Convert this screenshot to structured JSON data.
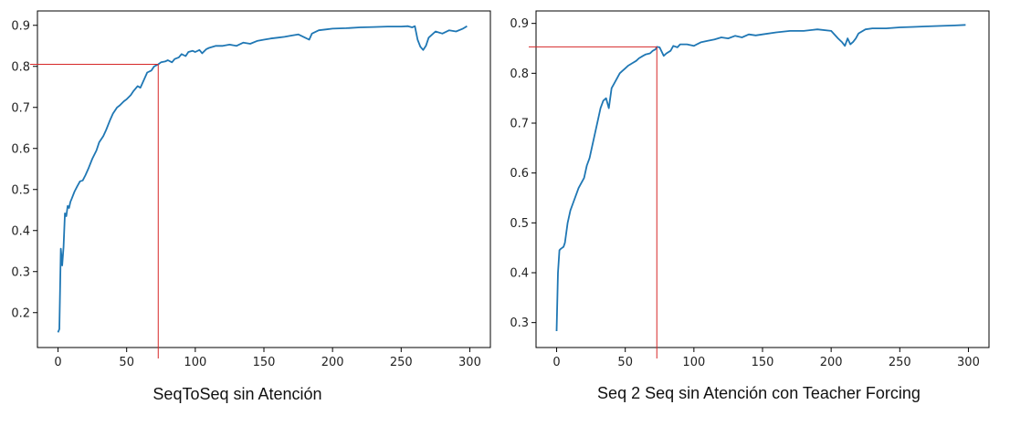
{
  "chart_data": [
    {
      "type": "line",
      "caption": "SeqToSeq sin Atención",
      "xlim": [
        -15,
        315
      ],
      "ylim": [
        0.115,
        0.935
      ],
      "xticks": [
        0,
        50,
        100,
        150,
        200,
        250,
        300
      ],
      "yticks": [
        0.2,
        0.3,
        0.4,
        0.5,
        0.6,
        0.7,
        0.8,
        0.9
      ],
      "grid": false,
      "line_color": "#1f77b4",
      "marker_color": "#d62728",
      "marker": {
        "x": 73,
        "y": 0.805
      },
      "series": [
        {
          "x": [
            0,
            1,
            2,
            3,
            4,
            5,
            6,
            7,
            8,
            9,
            10,
            12,
            14,
            16,
            18,
            20,
            22,
            25,
            28,
            30,
            33,
            35,
            38,
            40,
            43,
            45,
            48,
            50,
            53,
            55,
            58,
            60,
            63,
            65,
            68,
            70,
            73,
            75,
            78,
            80,
            83,
            85,
            88,
            90,
            93,
            95,
            98,
            100,
            103,
            105,
            108,
            110,
            115,
            120,
            125,
            130,
            135,
            140,
            145,
            150,
            155,
            160,
            165,
            170,
            175,
            180,
            183,
            185,
            190,
            195,
            200,
            210,
            220,
            230,
            240,
            250,
            255,
            258,
            260,
            262,
            264,
            266,
            268,
            270,
            275,
            280,
            285,
            290,
            295,
            298
          ],
          "y": [
            0.152,
            0.16,
            0.356,
            0.315,
            0.36,
            0.442,
            0.435,
            0.46,
            0.455,
            0.47,
            0.478,
            0.495,
            0.508,
            0.52,
            0.522,
            0.535,
            0.55,
            0.575,
            0.595,
            0.615,
            0.63,
            0.645,
            0.67,
            0.685,
            0.7,
            0.705,
            0.715,
            0.72,
            0.73,
            0.74,
            0.752,
            0.748,
            0.77,
            0.785,
            0.79,
            0.8,
            0.805,
            0.81,
            0.812,
            0.815,
            0.81,
            0.818,
            0.822,
            0.83,
            0.825,
            0.835,
            0.838,
            0.835,
            0.84,
            0.832,
            0.842,
            0.845,
            0.85,
            0.85,
            0.853,
            0.85,
            0.858,
            0.855,
            0.862,
            0.865,
            0.868,
            0.87,
            0.872,
            0.875,
            0.878,
            0.87,
            0.865,
            0.88,
            0.888,
            0.89,
            0.892,
            0.893,
            0.895,
            0.896,
            0.897,
            0.897,
            0.898,
            0.895,
            0.898,
            0.865,
            0.848,
            0.84,
            0.85,
            0.87,
            0.885,
            0.88,
            0.888,
            0.885,
            0.892,
            0.898
          ]
        }
      ]
    },
    {
      "type": "line",
      "caption": "Seq 2 Seq sin Atención con Teacher Forcing",
      "xlim": [
        -15,
        315
      ],
      "ylim": [
        0.25,
        0.925
      ],
      "xticks": [
        0,
        50,
        100,
        150,
        200,
        250,
        300
      ],
      "yticks": [
        0.3,
        0.4,
        0.5,
        0.6,
        0.7,
        0.8,
        0.9
      ],
      "grid": false,
      "line_color": "#1f77b4",
      "marker_color": "#d62728",
      "marker": {
        "x": 73,
        "y": 0.853
      },
      "series": [
        {
          "x": [
            0,
            1,
            2,
            3,
            4,
            5,
            6,
            7,
            8,
            10,
            12,
            14,
            16,
            18,
            20,
            22,
            24,
            26,
            28,
            30,
            32,
            34,
            36,
            38,
            40,
            42,
            44,
            46,
            48,
            50,
            52,
            55,
            58,
            60,
            63,
            65,
            68,
            70,
            72,
            73,
            75,
            78,
            80,
            83,
            85,
            88,
            90,
            95,
            100,
            105,
            110,
            115,
            120,
            125,
            130,
            135,
            140,
            145,
            150,
            160,
            170,
            180,
            190,
            200,
            205,
            208,
            210,
            212,
            214,
            216,
            218,
            220,
            225,
            230,
            240,
            250,
            260,
            270,
            280,
            290,
            298
          ],
          "y": [
            0.283,
            0.4,
            0.445,
            0.448,
            0.45,
            0.452,
            0.46,
            0.48,
            0.5,
            0.525,
            0.54,
            0.555,
            0.57,
            0.58,
            0.59,
            0.615,
            0.63,
            0.655,
            0.68,
            0.705,
            0.73,
            0.745,
            0.75,
            0.73,
            0.77,
            0.78,
            0.79,
            0.8,
            0.805,
            0.81,
            0.815,
            0.82,
            0.825,
            0.83,
            0.835,
            0.838,
            0.84,
            0.845,
            0.848,
            0.853,
            0.852,
            0.835,
            0.84,
            0.845,
            0.855,
            0.852,
            0.858,
            0.858,
            0.855,
            0.862,
            0.865,
            0.868,
            0.872,
            0.87,
            0.875,
            0.872,
            0.878,
            0.876,
            0.878,
            0.882,
            0.885,
            0.885,
            0.888,
            0.885,
            0.87,
            0.862,
            0.855,
            0.87,
            0.858,
            0.863,
            0.87,
            0.88,
            0.888,
            0.89,
            0.89,
            0.892,
            0.893,
            0.894,
            0.895,
            0.896,
            0.897
          ]
        }
      ]
    }
  ]
}
